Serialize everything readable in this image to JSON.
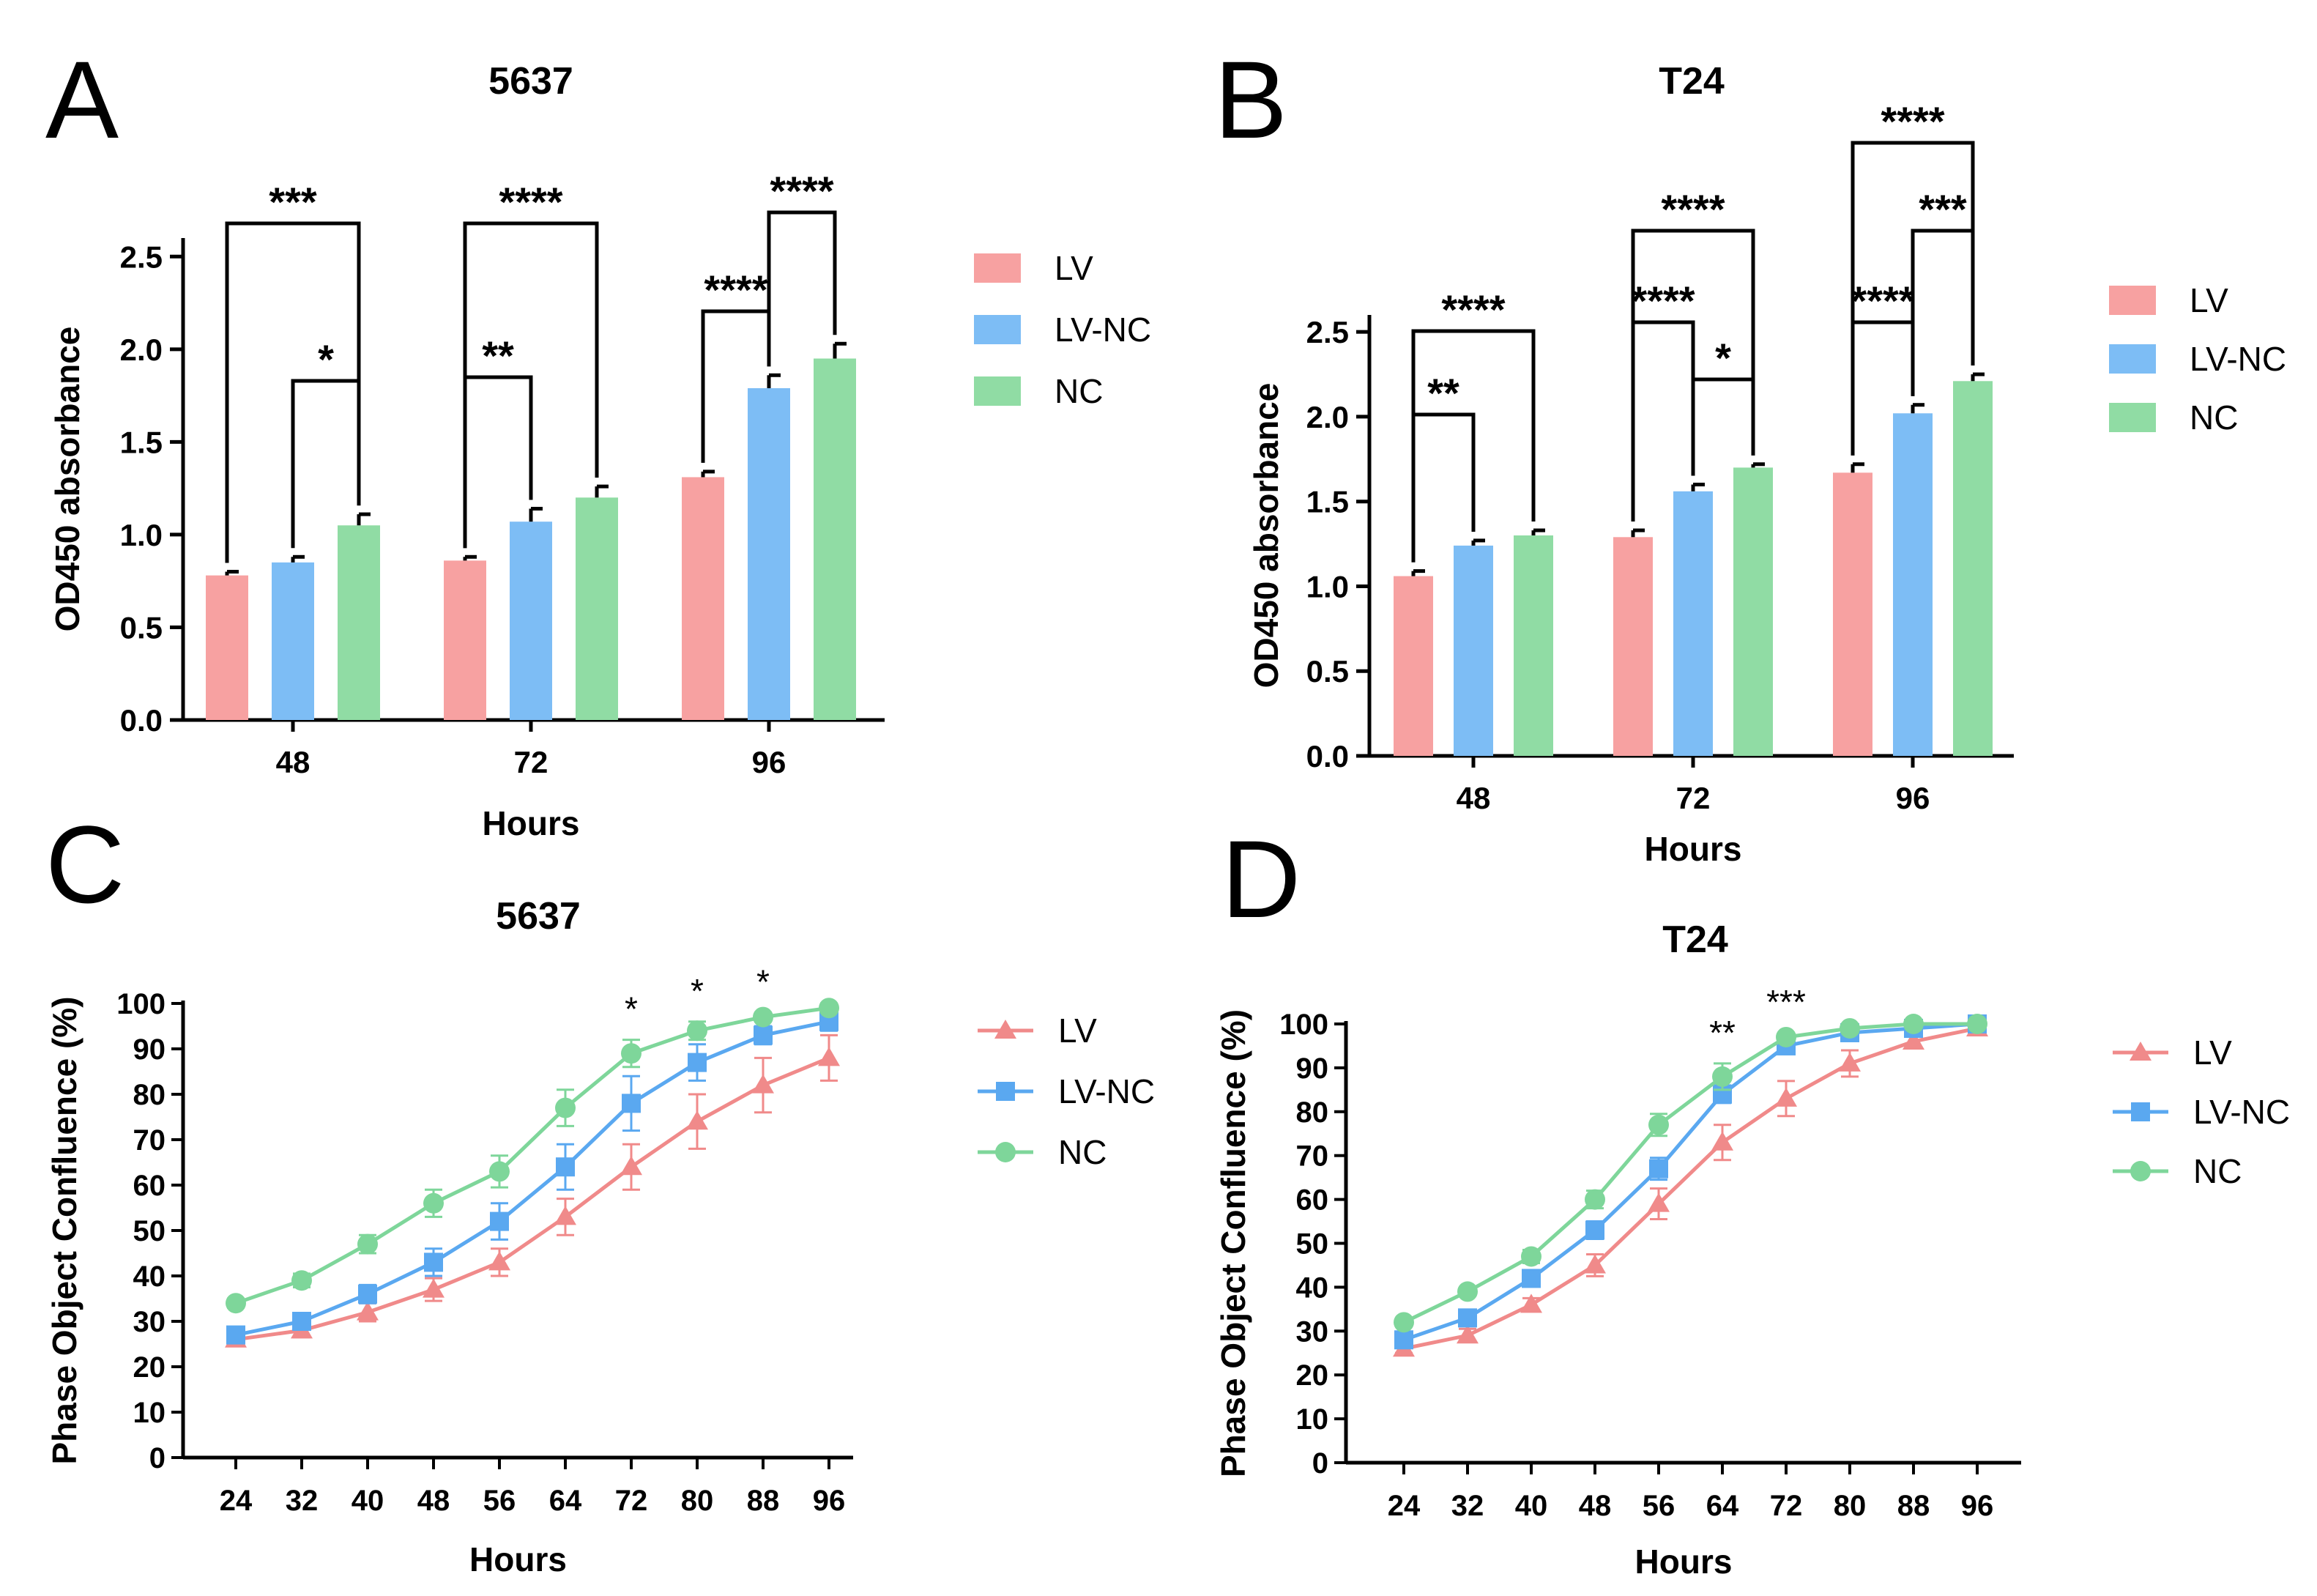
{
  "colors": {
    "LV": "#F7A1A1",
    "LV-NC": "#7DBDF5",
    "NC": "#90DCA4"
  },
  "chart_data": [
    {
      "panel": "A",
      "type": "bar",
      "title": "5637",
      "xlabel": "Hours",
      "ylabel": "OD450 absorbance",
      "categories": [
        "48",
        "72",
        "96"
      ],
      "yticks": [
        "0.0",
        "0.5",
        "1.0",
        "1.5",
        "2.0",
        "2.5"
      ],
      "ylim": [
        0,
        2.6
      ],
      "legend_position": "right",
      "series": [
        {
          "name": "LV",
          "values": [
            0.78,
            0.86,
            1.31
          ],
          "errors": [
            0.02,
            0.02,
            0.03
          ]
        },
        {
          "name": "LV-NC",
          "values": [
            0.85,
            1.07,
            1.79
          ],
          "errors": [
            0.03,
            0.07,
            0.07
          ]
        },
        {
          "name": "NC",
          "values": [
            1.05,
            1.2,
            1.95
          ],
          "errors": [
            0.06,
            0.06,
            0.08
          ]
        }
      ],
      "significance": [
        {
          "category": 0,
          "from": "LV",
          "to": "NC",
          "label": "***"
        },
        {
          "category": 0,
          "from": "LV-NC",
          "to": "NC",
          "label": "*"
        },
        {
          "category": 1,
          "from": "LV",
          "to": "NC",
          "label": "****"
        },
        {
          "category": 1,
          "from": "LV",
          "to": "LV-NC",
          "label": "**"
        },
        {
          "category": 2,
          "from": "LV-NC",
          "to": "NC",
          "label": "****"
        },
        {
          "category": 2,
          "from": "LV",
          "to": "LV-NC",
          "label": "****"
        }
      ]
    },
    {
      "panel": "B",
      "type": "bar",
      "title": "T24",
      "xlabel": "Hours",
      "ylabel": "OD450 absorbance",
      "categories": [
        "48",
        "72",
        "96"
      ],
      "yticks": [
        "0.0",
        "0.5",
        "1.0",
        "1.5",
        "2.0",
        "2.5"
      ],
      "ylim": [
        0,
        2.6
      ],
      "legend_position": "right",
      "series": [
        {
          "name": "LV",
          "values": [
            1.06,
            1.29,
            1.67
          ],
          "errors": [
            0.03,
            0.04,
            0.05
          ]
        },
        {
          "name": "LV-NC",
          "values": [
            1.24,
            1.56,
            2.02
          ],
          "errors": [
            0.03,
            0.04,
            0.05
          ]
        },
        {
          "name": "NC",
          "values": [
            1.3,
            1.7,
            2.21
          ],
          "errors": [
            0.03,
            0.02,
            0.04
          ]
        }
      ],
      "significance": [
        {
          "category": 0,
          "from": "LV",
          "to": "NC",
          "label": "****"
        },
        {
          "category": 0,
          "from": "LV",
          "to": "LV-NC",
          "label": "**"
        },
        {
          "category": 1,
          "from": "LV",
          "to": "NC",
          "label": "****"
        },
        {
          "category": 1,
          "from": "LV",
          "to": "LV-NC",
          "label": "****"
        },
        {
          "category": 1,
          "from": "LV-NC",
          "to": "NC",
          "label": "*"
        },
        {
          "category": 2,
          "from": "LV",
          "to": "NC",
          "label": "****"
        },
        {
          "category": 2,
          "from": "LV-NC",
          "to": "NC",
          "label": "***"
        },
        {
          "category": 2,
          "from": "LV",
          "to": "LV-NC",
          "label": "****"
        }
      ]
    },
    {
      "panel": "C",
      "type": "line",
      "title": "5637",
      "xlabel": "Hours",
      "ylabel": "Phase Object Confluence (%)",
      "x": [
        24,
        32,
        40,
        48,
        56,
        64,
        72,
        80,
        88,
        96
      ],
      "yticks": [
        "0",
        "10",
        "20",
        "30",
        "40",
        "50",
        "60",
        "70",
        "80",
        "90",
        "100"
      ],
      "ylim": [
        0,
        100
      ],
      "legend_position": "right",
      "series": [
        {
          "name": "LV",
          "marker": "triangle",
          "values": [
            26,
            28,
            32,
            37,
            43,
            53,
            64,
            74,
            82,
            88
          ],
          "errors": [
            1,
            1.5,
            2,
            2.5,
            3,
            4,
            5,
            6,
            6,
            5
          ]
        },
        {
          "name": "LV-NC",
          "marker": "square",
          "values": [
            27,
            30,
            36,
            43,
            52,
            64,
            78,
            87,
            93,
            96
          ],
          "errors": [
            1,
            1.5,
            2,
            3,
            4,
            5,
            6,
            4,
            2,
            2
          ]
        },
        {
          "name": "NC",
          "marker": "circle",
          "values": [
            34,
            39,
            47,
            56,
            63,
            77,
            89,
            94,
            97,
            99
          ],
          "errors": [
            1,
            1.5,
            2,
            3,
            3.5,
            4,
            3,
            2,
            1,
            1
          ]
        }
      ],
      "annotations": [
        {
          "x": 72,
          "label": "*"
        },
        {
          "x": 80,
          "label": "*"
        },
        {
          "x": 88,
          "label": "*"
        }
      ]
    },
    {
      "panel": "D",
      "type": "line",
      "title": "T24",
      "xlabel": "Hours",
      "ylabel": "Phase Object Confluence (%)",
      "x": [
        24,
        32,
        40,
        48,
        56,
        64,
        72,
        80,
        88,
        96
      ],
      "yticks": [
        "0",
        "10",
        "20",
        "30",
        "40",
        "50",
        "60",
        "70",
        "80",
        "90",
        "100"
      ],
      "ylim": [
        0,
        100
      ],
      "legend_position": "right",
      "series": [
        {
          "name": "LV",
          "marker": "triangle",
          "values": [
            26,
            29,
            36,
            45,
            59,
            73,
            83,
            91,
            96,
            99
          ],
          "errors": [
            1,
            1.5,
            1.5,
            2.5,
            3.5,
            4,
            4,
            3,
            1.5,
            1
          ]
        },
        {
          "name": "LV-NC",
          "marker": "square",
          "values": [
            28,
            33,
            42,
            53,
            67,
            84,
            95,
            98,
            99,
            100
          ],
          "errors": [
            1,
            1.5,
            1.5,
            2,
            2.5,
            2,
            1,
            1,
            0.5,
            0.5
          ]
        },
        {
          "name": "NC",
          "marker": "circle",
          "values": [
            32,
            39,
            47,
            60,
            77,
            88,
            97,
            99,
            100,
            100
          ],
          "errors": [
            1,
            1,
            1.5,
            2,
            2.5,
            3,
            1,
            0.5,
            0.5,
            0.5
          ]
        }
      ],
      "annotations": [
        {
          "x": 64,
          "label": "**"
        },
        {
          "x": 72,
          "label": "***"
        }
      ]
    }
  ]
}
